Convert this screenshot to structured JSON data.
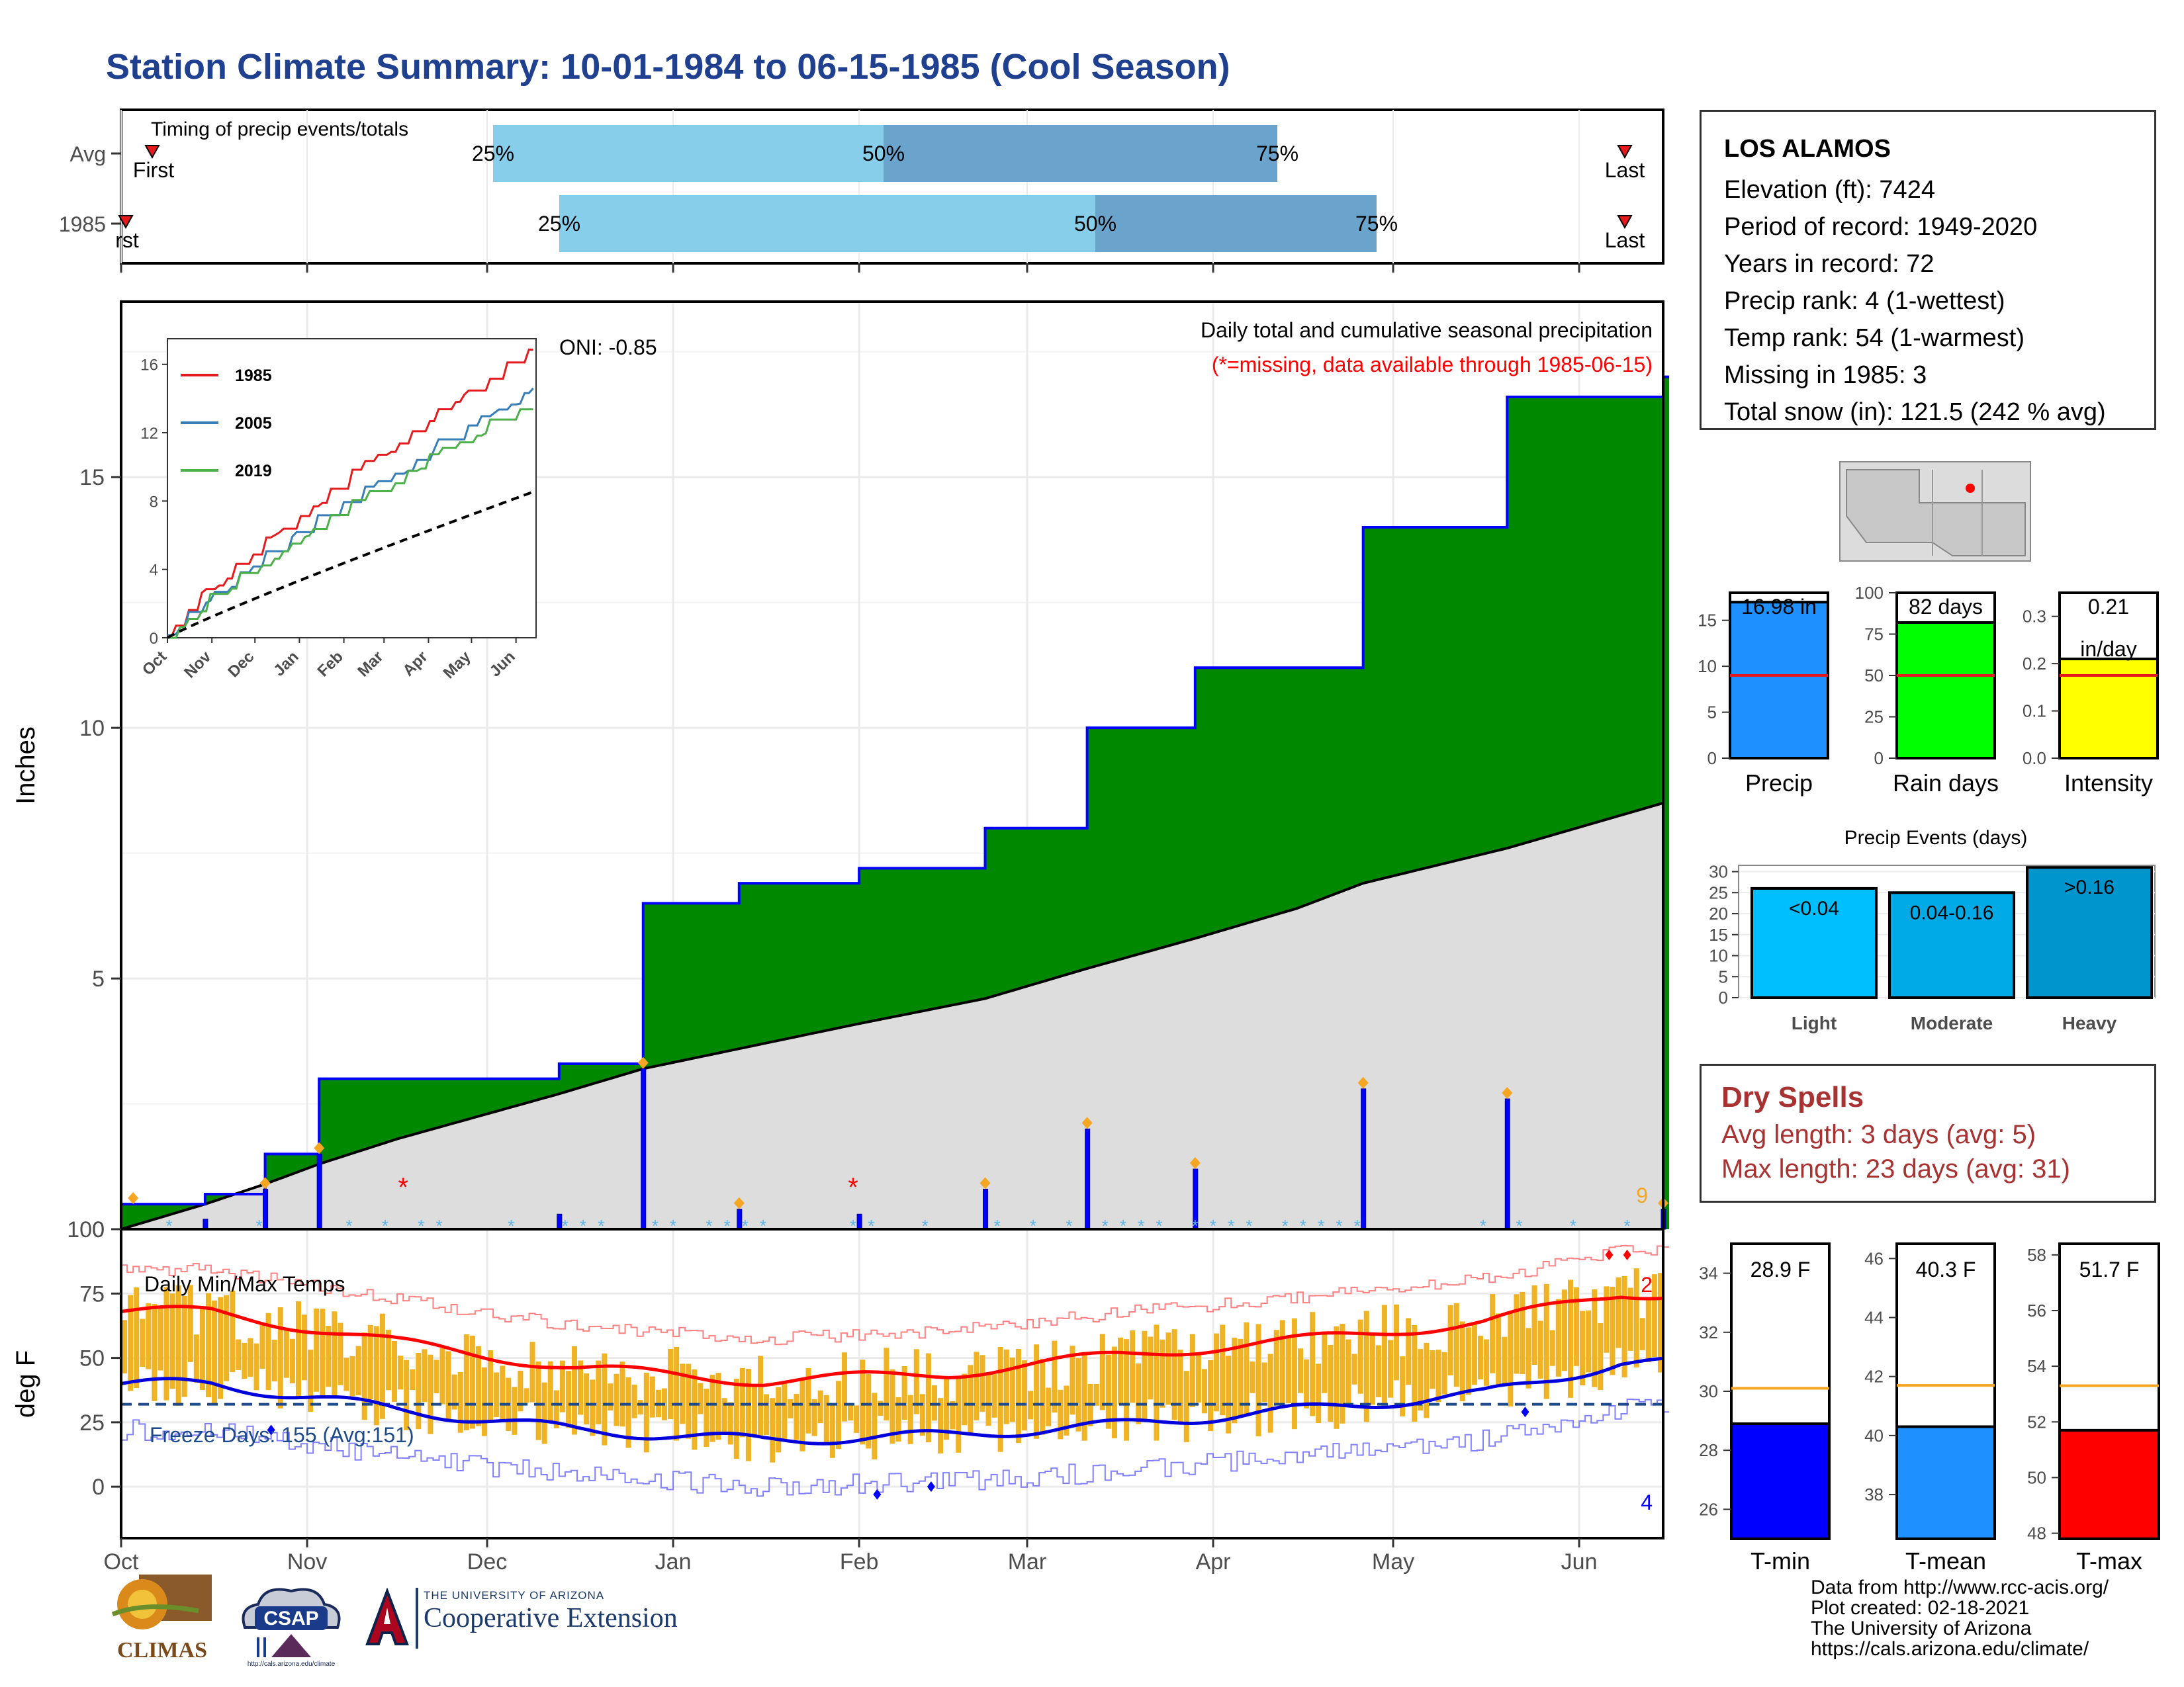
{
  "title": "Station Climate Summary: 10-01-1984 to 06-15-1985 (Cool Season)",
  "timing_panel": {
    "label": "Timing of precip events/totals",
    "rows": [
      {
        "label": "Avg",
        "first_label": "First",
        "last_label": "Last",
        "pct": [
          "25%",
          "50%",
          "75%"
        ]
      },
      {
        "label": "1985",
        "first_label": "rst",
        "last_label": "Last",
        "pct": [
          "25%",
          "50%",
          "75%"
        ]
      }
    ]
  },
  "main_panel": {
    "ylabel": "Inches",
    "y_ticks": [
      "0",
      "5",
      "10",
      "15"
    ],
    "oni_label": "ONI: -0.85",
    "note1": "Daily total and cumulative seasonal precipitation",
    "note2": "(*=missing, data available through 1985-06-15)",
    "count_label": "9"
  },
  "inset": {
    "x_ticks": [
      "Oct",
      "Nov",
      "Dec",
      "Jan",
      "Feb",
      "Mar",
      "Apr",
      "May",
      "Jun"
    ],
    "y_ticks": [
      "0",
      "4",
      "8",
      "12",
      "16"
    ],
    "legend": [
      {
        "name": "1985",
        "color": "#e41a1c"
      },
      {
        "name": "2005",
        "color": "#377eb8"
      },
      {
        "name": "2019",
        "color": "#4daf4a"
      }
    ]
  },
  "temp_panel": {
    "ylabel": "deg F",
    "label": "Daily Min/Max Temps",
    "freeze_label": "Freeze Days: 155 (Avg:151)",
    "y_ticks": [
      "0",
      "25",
      "50",
      "75",
      "100"
    ],
    "x_ticks": [
      "Oct",
      "Nov",
      "Dec",
      "Jan",
      "Feb",
      "Mar",
      "Apr",
      "May",
      "Jun"
    ],
    "hot_count": "2",
    "cold_count": "4"
  },
  "station_info": {
    "station": "LOS ALAMOS",
    "lines": [
      "Elevation (ft): 7424",
      "Period of record: 1949-2020",
      "Years in record: 72",
      "Precip rank: 4 (1-wettest)",
      "Temp rank: 54 (1-warmest)",
      "Missing in 1985: 3",
      "Total snow (in): 121.5 (242 % avg)"
    ]
  },
  "small_bars": {
    "precip": {
      "label": "Precip",
      "value_label": "16.98 in",
      "value": 16.98,
      "avg": 9,
      "y_ticks": [
        "0",
        "5",
        "10",
        "15"
      ],
      "ymax": 18,
      "color": "#1e90ff"
    },
    "rain_days": {
      "label": "Rain days",
      "value_label": "82 days",
      "value": 82,
      "avg": 50,
      "y_ticks": [
        "0",
        "25",
        "50",
        "75",
        "100"
      ],
      "ymax": 100,
      "color": "#00ff00"
    },
    "intensity": {
      "label": "Intensity",
      "value_label": "0.21",
      "value_unit": "in/day",
      "value": 0.21,
      "avg": 0.175,
      "y_ticks": [
        "0.0",
        "0.1",
        "0.2",
        "0.3"
      ],
      "ymax": 0.35,
      "color": "#ffff00"
    }
  },
  "precip_events": {
    "title": "Precip Events (days)",
    "y_ticks": [
      "0",
      "5",
      "10",
      "15",
      "20",
      "25",
      "30"
    ],
    "bars": [
      {
        "label": "Light",
        "value_label": "<0.04",
        "value": 26,
        "color": "#00bfff"
      },
      {
        "label": "Moderate",
        "value_label": "0.04-0.16",
        "value": 25,
        "color": "#00aae6"
      },
      {
        "label": "Heavy",
        "value_label": ">0.16",
        "value": 31,
        "color": "#0095cc"
      }
    ]
  },
  "dry_spells": {
    "title": "Dry Spells",
    "avg": "Avg length: 3 days (avg: 5)",
    "max": "Max length: 23 days (avg: 31)"
  },
  "temp_bars": [
    {
      "label": "T-min",
      "value_label": "28.9 F",
      "value": 28.9,
      "avg": 30.1,
      "y_ticks": [
        "26",
        "28",
        "30",
        "32",
        "34"
      ],
      "ymin": 25,
      "ymax": 35,
      "color": "#0000ff"
    },
    {
      "label": "T-mean",
      "value_label": "40.3 F",
      "value": 40.3,
      "avg": 41.7,
      "y_ticks": [
        "38",
        "40",
        "42",
        "44",
        "46"
      ],
      "ymin": 36.5,
      "ymax": 46.5,
      "color": "#1e90ff"
    },
    {
      "label": "T-max",
      "value_label": "51.7 F",
      "value": 51.7,
      "avg": 53.3,
      "y_ticks": [
        "48",
        "50",
        "52",
        "54",
        "56",
        "58"
      ],
      "ymin": 47.8,
      "ymax": 58.4,
      "color": "#ff0000"
    }
  ],
  "credits": [
    "Data from http://www.rcc-acis.org/",
    "Plot created: 02-18-2021",
    "The University of Arizona",
    "https://cals.arizona.edu/climate/"
  ],
  "logos": {
    "climas": "CLIMAS",
    "csap": "CSAP",
    "csap_url": "http://cals.arizona.edu/climate",
    "coop_small": "THE UNIVERSITY OF ARIZONA",
    "coop_large": "Cooperative Extension"
  },
  "chart_data": [
    {
      "type": "area",
      "title": "Daily total and cumulative seasonal precipitation",
      "ylabel": "Inches",
      "ylim": [
        0,
        18.5
      ],
      "x": [
        "1984-10-01",
        "1984-10-15",
        "1984-10-25",
        "1984-11-03",
        "1984-11-16",
        "1984-12-01",
        "1984-12-13",
        "1984-12-27",
        "1985-01-12",
        "1985-02-01",
        "1985-02-22",
        "1985-03-11",
        "1985-03-29",
        "1985-04-15",
        "1985-04-26",
        "1985-05-20",
        "1985-06-15"
      ],
      "series": [
        {
          "name": "1985",
          "values": [
            0.5,
            0.7,
            1.5,
            3.0,
            3.0,
            3.0,
            3.3,
            6.5,
            6.9,
            7.2,
            8.0,
            10.0,
            11.2,
            11.2,
            14.0,
            16.6,
            17.0
          ]
        },
        {
          "name": "Avg",
          "values": [
            0.0,
            0.5,
            0.9,
            1.3,
            1.8,
            2.3,
            2.7,
            3.2,
            3.6,
            4.1,
            4.6,
            5.2,
            5.8,
            6.4,
            6.9,
            7.6,
            8.5
          ]
        }
      ]
    },
    {
      "type": "line",
      "title": "Daily Min/Max Temps",
      "ylabel": "deg F",
      "ylim": [
        -20,
        100
      ],
      "x": [
        "Oct",
        "Nov",
        "Dec",
        "Jan",
        "Feb",
        "Mar",
        "Apr",
        "May",
        "Jun"
      ],
      "series": [
        {
          "name": "Avg max",
          "values": [
            68,
            56,
            46,
            41,
            44,
            51,
            57,
            64,
            75
          ]
        },
        {
          "name": "Avg min",
          "values": [
            40,
            30,
            22,
            18,
            20,
            24,
            30,
            36,
            48
          ]
        }
      ]
    }
  ]
}
